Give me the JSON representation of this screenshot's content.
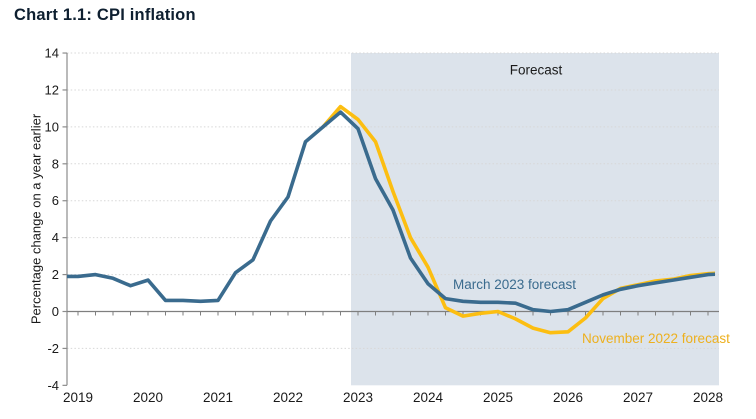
{
  "page": {
    "title": "Chart 1.1: CPI inflation"
  },
  "colors": {
    "march_line": "#3a6b8e",
    "november_line": "#fcbe11",
    "march_label": "#3a6b8e",
    "november_label": "#edb01e",
    "forecast_band": "#dce3eb",
    "gridline": "#d7d7d7",
    "axis": "#8c8c8c",
    "zero_line": "#7f7f7f",
    "tick_text": "#1a1a1a",
    "title_text": "#0e1f30"
  },
  "chart_data": {
    "type": "line",
    "title": "Chart 1.1: CPI inflation",
    "ylabel": "Percentage change on a year earlier",
    "ylim": [
      -4,
      14
    ],
    "yticks": [
      14,
      12,
      10,
      8,
      6,
      4,
      2,
      0,
      -2,
      -4
    ],
    "xtick_years": [
      "2019",
      "2020",
      "2021",
      "2022",
      "2023",
      "2024",
      "2025",
      "2026",
      "2027",
      "2028"
    ],
    "grid": "dotted-horizontal",
    "x_unit": "quarterly",
    "forecast_region": {
      "label": "Forecast",
      "starts_at": "2023Q1"
    },
    "series": [
      {
        "name": "March 2023 forecast",
        "color_key": "march_line",
        "points": [
          [
            "2018Q4",
            1.9
          ],
          [
            "2019Q1",
            1.9
          ],
          [
            "2019Q2",
            2.0
          ],
          [
            "2019Q3",
            1.8
          ],
          [
            "2019Q4",
            1.4
          ],
          [
            "2020Q1",
            1.7
          ],
          [
            "2020Q2",
            0.6
          ],
          [
            "2020Q3",
            0.6
          ],
          [
            "2020Q4",
            0.55
          ],
          [
            "2021Q1",
            0.6
          ],
          [
            "2021Q2",
            2.1
          ],
          [
            "2021Q3",
            2.8
          ],
          [
            "2021Q4",
            4.9
          ],
          [
            "2022Q1",
            6.2
          ],
          [
            "2022Q2",
            9.2
          ],
          [
            "2022Q3",
            10.0
          ],
          [
            "2022Q4",
            10.8
          ],
          [
            "2023Q1",
            9.9
          ],
          [
            "2023Q2",
            7.2
          ],
          [
            "2023Q3",
            5.5
          ],
          [
            "2023Q4",
            2.9
          ],
          [
            "2024Q1",
            1.5
          ],
          [
            "2024Q2",
            0.7
          ],
          [
            "2024Q3",
            0.55
          ],
          [
            "2024Q4",
            0.5
          ],
          [
            "2025Q1",
            0.5
          ],
          [
            "2025Q2",
            0.45
          ],
          [
            "2025Q3",
            0.1
          ],
          [
            "2025Q4",
            0.0
          ],
          [
            "2026Q1",
            0.1
          ],
          [
            "2026Q2",
            0.5
          ],
          [
            "2026Q3",
            0.9
          ],
          [
            "2026Q4",
            1.2
          ],
          [
            "2027Q1",
            1.4
          ],
          [
            "2027Q2",
            1.55
          ],
          [
            "2027Q3",
            1.7
          ],
          [
            "2027Q4",
            1.85
          ],
          [
            "2028Q1",
            2.0
          ],
          [
            "2028Q2",
            2.05
          ]
        ]
      },
      {
        "name": "November 2022 forecast",
        "color_key": "november_line",
        "points": [
          [
            "2022Q3",
            10.0
          ],
          [
            "2022Q4",
            11.1
          ],
          [
            "2023Q1",
            10.4
          ],
          [
            "2023Q2",
            9.2
          ],
          [
            "2023Q3",
            6.5
          ],
          [
            "2023Q4",
            4.0
          ],
          [
            "2024Q1",
            2.4
          ],
          [
            "2024Q2",
            0.2
          ],
          [
            "2024Q3",
            -0.25
          ],
          [
            "2024Q4",
            -0.1
          ],
          [
            "2025Q1",
            0.0
          ],
          [
            "2025Q2",
            -0.4
          ],
          [
            "2025Q3",
            -0.9
          ],
          [
            "2025Q4",
            -1.15
          ],
          [
            "2026Q1",
            -1.1
          ],
          [
            "2026Q2",
            -0.35
          ],
          [
            "2026Q3",
            0.7
          ],
          [
            "2026Q4",
            1.25
          ],
          [
            "2027Q1",
            1.45
          ],
          [
            "2027Q2",
            1.65
          ],
          [
            "2027Q3",
            1.75
          ],
          [
            "2027Q4",
            1.95
          ],
          [
            "2028Q1",
            2.05
          ],
          [
            "2028Q2",
            2.1
          ]
        ]
      }
    ]
  }
}
